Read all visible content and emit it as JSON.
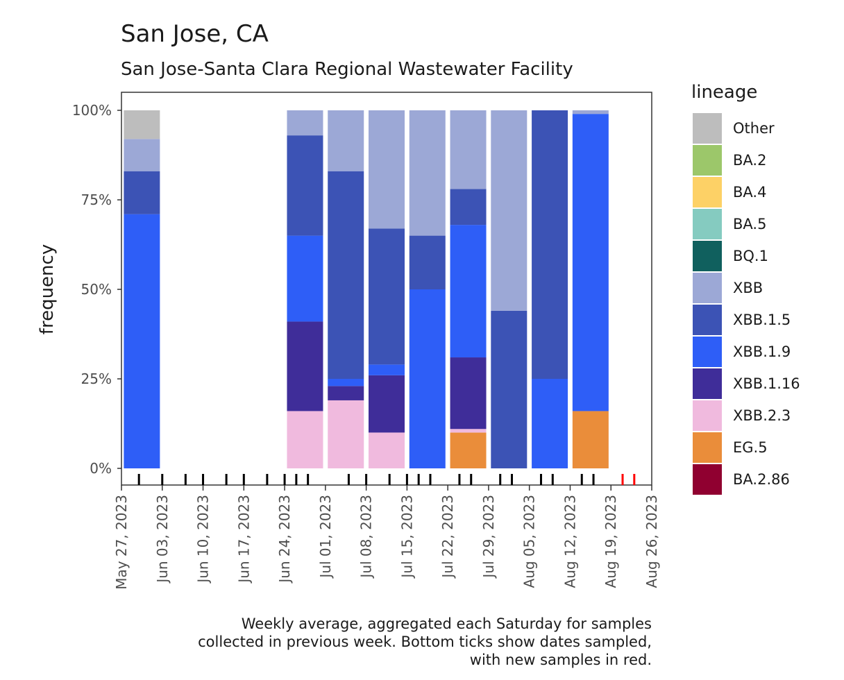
{
  "chart_data": {
    "type": "bar",
    "stacked": true,
    "title": "San Jose, CA",
    "subtitle": "San Jose-Santa Clara Regional Wastewater Facility",
    "ylabel": "frequency",
    "xlabel": "",
    "ylim": [
      0,
      1
    ],
    "y_ticks": [
      "0%",
      "25%",
      "50%",
      "75%",
      "100%"
    ],
    "x_ticks": [
      "May 27, 2023",
      "Jun 03, 2023",
      "Jun 10, 2023",
      "Jun 17, 2023",
      "Jun 24, 2023",
      "Jul 01, 2023",
      "Jul 08, 2023",
      "Jul 15, 2023",
      "Jul 22, 2023",
      "Jul 29, 2023",
      "Aug 05, 2023",
      "Aug 12, 2023",
      "Aug 19, 2023",
      "Aug 26, 2023"
    ],
    "x_start": "2023-05-27",
    "x_end": "2023-08-26",
    "legend_title": "lineage",
    "legend_position": "right",
    "lineages": [
      {
        "name": "Other",
        "color": "#bdbdbd"
      },
      {
        "name": "BA.2",
        "color": "#9cc76a"
      },
      {
        "name": "BA.4",
        "color": "#fdd166"
      },
      {
        "name": "BA.5",
        "color": "#85cbc0"
      },
      {
        "name": "BQ.1",
        "color": "#10605e"
      },
      {
        "name": "XBB",
        "color": "#9ca8d6"
      },
      {
        "name": "XBB.1.5",
        "color": "#3c53b5"
      },
      {
        "name": "XBB.1.9",
        "color": "#2e5ef7"
      },
      {
        "name": "XBB.1.16",
        "color": "#3f2d99"
      },
      {
        "name": "XBB.2.3",
        "color": "#f0bade"
      },
      {
        "name": "EG.5",
        "color": "#ea8d3a"
      },
      {
        "name": "BA.2.86",
        "color": "#900030"
      }
    ],
    "bars": [
      {
        "week_ending": "2023-05-27",
        "segments": [
          {
            "lineage": "XBB.1.9",
            "value": 0.71
          },
          {
            "lineage": "XBB.1.5",
            "value": 0.12
          },
          {
            "lineage": "XBB",
            "value": 0.09
          },
          {
            "lineage": "Other",
            "value": 0.08
          }
        ]
      },
      {
        "week_ending": "2023-06-24",
        "segments": [
          {
            "lineage": "XBB.2.3",
            "value": 0.16
          },
          {
            "lineage": "XBB.1.16",
            "value": 0.25
          },
          {
            "lineage": "XBB.1.9",
            "value": 0.24
          },
          {
            "lineage": "XBB.1.5",
            "value": 0.28
          },
          {
            "lineage": "XBB",
            "value": 0.07
          }
        ]
      },
      {
        "week_ending": "2023-07-01",
        "segments": [
          {
            "lineage": "XBB.2.3",
            "value": 0.19
          },
          {
            "lineage": "XBB.1.16",
            "value": 0.04
          },
          {
            "lineage": "XBB.1.9",
            "value": 0.02
          },
          {
            "lineage": "XBB.1.5",
            "value": 0.58
          },
          {
            "lineage": "XBB",
            "value": 0.17
          }
        ]
      },
      {
        "week_ending": "2023-07-08",
        "segments": [
          {
            "lineage": "XBB.2.3",
            "value": 0.1
          },
          {
            "lineage": "XBB.1.16",
            "value": 0.16
          },
          {
            "lineage": "XBB.1.9",
            "value": 0.03
          },
          {
            "lineage": "XBB.1.5",
            "value": 0.38
          },
          {
            "lineage": "XBB",
            "value": 0.33
          }
        ]
      },
      {
        "week_ending": "2023-07-15",
        "segments": [
          {
            "lineage": "XBB.1.9",
            "value": 0.5
          },
          {
            "lineage": "XBB.1.5",
            "value": 0.15
          },
          {
            "lineage": "XBB",
            "value": 0.35
          }
        ]
      },
      {
        "week_ending": "2023-07-22",
        "segments": [
          {
            "lineage": "EG.5",
            "value": 0.1
          },
          {
            "lineage": "XBB.2.3",
            "value": 0.01
          },
          {
            "lineage": "XBB.1.16",
            "value": 0.2
          },
          {
            "lineage": "XBB.1.9",
            "value": 0.37
          },
          {
            "lineage": "XBB.1.5",
            "value": 0.1
          },
          {
            "lineage": "XBB",
            "value": 0.22
          }
        ]
      },
      {
        "week_ending": "2023-07-29",
        "segments": [
          {
            "lineage": "XBB.1.5",
            "value": 0.44
          },
          {
            "lineage": "XBB",
            "value": 0.56
          }
        ]
      },
      {
        "week_ending": "2023-08-05",
        "segments": [
          {
            "lineage": "XBB.1.9",
            "value": 0.25
          },
          {
            "lineage": "XBB.1.5",
            "value": 0.75
          }
        ]
      },
      {
        "week_ending": "2023-08-12",
        "segments": [
          {
            "lineage": "EG.5",
            "value": 0.16
          },
          {
            "lineage": "XBB.1.9",
            "value": 0.83
          },
          {
            "lineage": "XBB",
            "value": 0.01
          }
        ]
      }
    ],
    "sample_dates": [
      "2023-05-30",
      "2023-06-03",
      "2023-06-07",
      "2023-06-10",
      "2023-06-14",
      "2023-06-17",
      "2023-06-21",
      "2023-06-24",
      "2023-06-26",
      "2023-06-28",
      "2023-07-05",
      "2023-07-08",
      "2023-07-12",
      "2023-07-15",
      "2023-07-17",
      "2023-07-19",
      "2023-07-24",
      "2023-07-26",
      "2023-07-31",
      "2023-08-02",
      "2023-08-07",
      "2023-08-09",
      "2023-08-14",
      "2023-08-16"
    ],
    "new_sample_dates": [
      "2023-08-21",
      "2023-08-23"
    ],
    "caption": [
      "Weekly average, aggregated each Saturday for samples",
      "collected in previous week. Bottom ticks show dates sampled,",
      "with new samples in red."
    ]
  }
}
